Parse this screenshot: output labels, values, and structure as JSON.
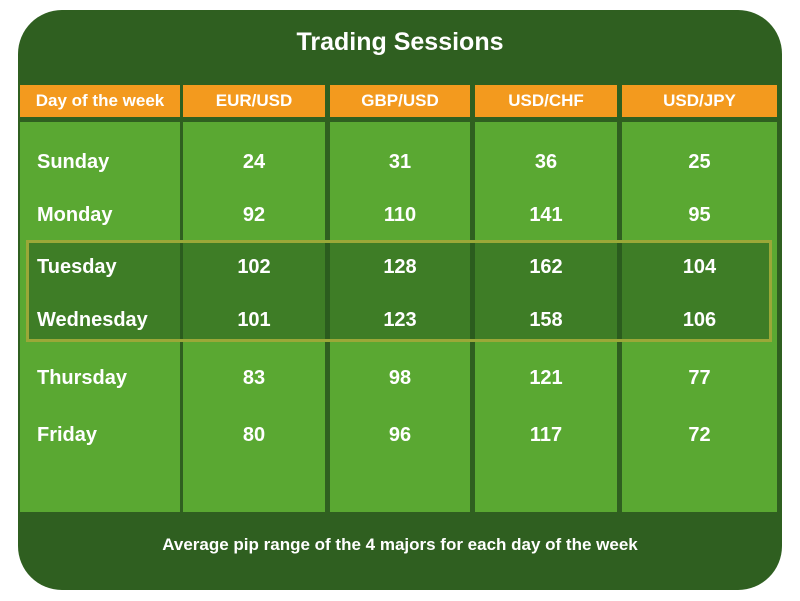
{
  "title": "Trading Sessions",
  "table": {
    "header": [
      "Day of the week",
      "EUR/USD",
      "GBP/USD",
      "USD/CHF",
      "USD/JPY"
    ],
    "rows": [
      [
        "Sunday",
        24,
        31,
        36,
        25
      ],
      [
        "Monday",
        92,
        110,
        141,
        95
      ],
      [
        "Tuesday",
        102,
        128,
        162,
        104
      ],
      [
        "Wednesday",
        101,
        123,
        158,
        106
      ],
      [
        "Thursday",
        83,
        98,
        121,
        77
      ],
      [
        "Friday",
        80,
        96,
        117,
        72
      ]
    ]
  },
  "caption": "Average pip range of the 4 majors for each day of the week"
}
